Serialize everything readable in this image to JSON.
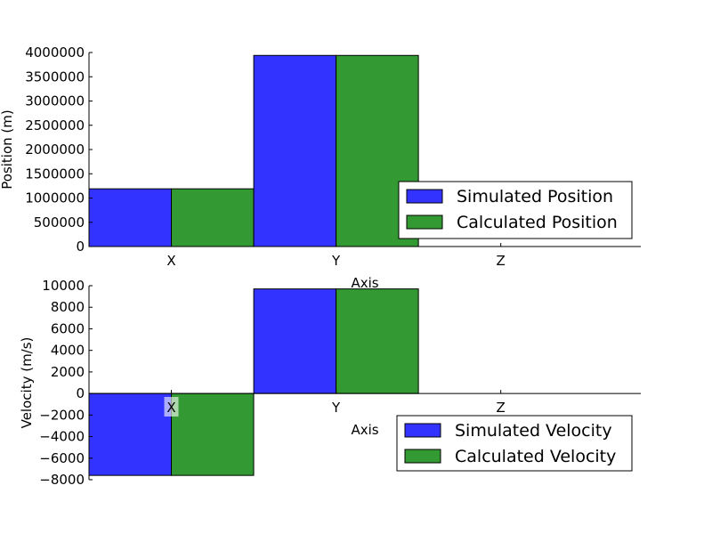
{
  "chart_data": [
    {
      "type": "bar",
      "categories": [
        "X",
        "Y",
        "Z"
      ],
      "series": [
        {
          "name": "Simulated Position",
          "values": [
            1190000,
            3940000,
            0
          ],
          "color": "#3333ff"
        },
        {
          "name": "Calculated Position",
          "values": [
            1190000,
            3940000,
            0
          ],
          "color": "#339933"
        }
      ],
      "xlabel": "Axis",
      "ylabel": "Position (m)",
      "ylim": [
        0,
        4000000
      ],
      "yticks": [
        0,
        500000,
        1000000,
        1500000,
        2000000,
        2500000,
        3000000,
        3500000,
        4000000
      ],
      "ytick_labels": [
        "0",
        "500000",
        "1000000",
        "1500000",
        "2000000",
        "2500000",
        "3000000",
        "3500000",
        "4000000"
      ],
      "legend_position": "lower-right",
      "grid": false
    },
    {
      "type": "bar",
      "categories": [
        "X",
        "Y",
        "Z"
      ],
      "series": [
        {
          "name": "Simulated Velocity",
          "values": [
            -7600,
            9700,
            0
          ],
          "color": "#3333ff"
        },
        {
          "name": "Calculated Velocity",
          "values": [
            -7600,
            9700,
            0
          ],
          "color": "#339933"
        }
      ],
      "xlabel": "Axis",
      "ylabel": "Velocity (m/s)",
      "ylim": [
        -8000,
        10000
      ],
      "yticks": [
        -8000,
        -6000,
        -4000,
        -2000,
        0,
        2000,
        4000,
        6000,
        8000,
        10000
      ],
      "ytick_labels": [
        "−8000",
        "−6000",
        "−4000",
        "−2000",
        "0",
        "2000",
        "4000",
        "6000",
        "8000",
        "10000"
      ],
      "legend_position": "lower-right",
      "grid": false
    }
  ]
}
